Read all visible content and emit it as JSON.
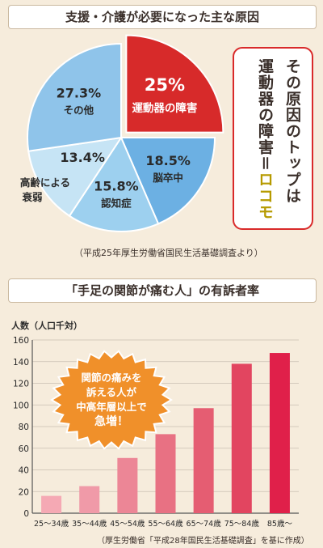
{
  "pie_section": {
    "title": "支援・介護が必要になった主な原因",
    "source": "（平成25年厚生労働省国民生活基礎調査より）",
    "callout": {
      "line1": "その原因のトップは",
      "line2_prefix": "運動器の障害＝",
      "line2_highlight": "ロコモ"
    }
  },
  "bar_section": {
    "title": "「手足の関節が痛む人」の有訴者率",
    "source": "（厚生労働省「平成28年国民生活基礎調査」を基に作成）",
    "burst": [
      "関節の痛みを",
      "訴える人が",
      "中高年層以上で",
      "急増！"
    ]
  },
  "chart_data": [
    {
      "type": "pie",
      "title": "支援・介護が必要になった主な原因",
      "slices": [
        {
          "label": "運動器の障害",
          "value": 25,
          "value_label": "25%",
          "color": "#d72a2a",
          "exploded": true
        },
        {
          "label": "脳卒中",
          "value": 18.5,
          "value_label": "18.5%",
          "color": "#6cb0e3"
        },
        {
          "label": "認知症",
          "value": 15.8,
          "value_label": "15.8%",
          "color": "#9dd0ef"
        },
        {
          "label": "高齢による衰弱",
          "value": 13.4,
          "value_label": "13.4%",
          "color": "#c6e4f5"
        },
        {
          "label": "その他",
          "value": 27.3,
          "value_label": "27.3%",
          "color": "#8fc4ea"
        }
      ]
    },
    {
      "type": "bar",
      "title": "「手足の関節が痛む人」の有訴者率",
      "ylabel": "人数（人口千対）",
      "ylim": [
        0,
        160
      ],
      "yticks": [
        0,
        20,
        40,
        60,
        80,
        100,
        120,
        140,
        160
      ],
      "categories": [
        "25～34歳",
        "35～44歳",
        "45～54歳",
        "55～64歳",
        "65～74歳",
        "75～84歳",
        "85歳～"
      ],
      "values": [
        16,
        25,
        51,
        73,
        97,
        138,
        148
      ],
      "colors": [
        "#f5a9b4",
        "#f09aa8",
        "#ec8696",
        "#e87183",
        "#e55d72",
        "#e24560",
        "#e0204a"
      ],
      "grid": true
    }
  ]
}
